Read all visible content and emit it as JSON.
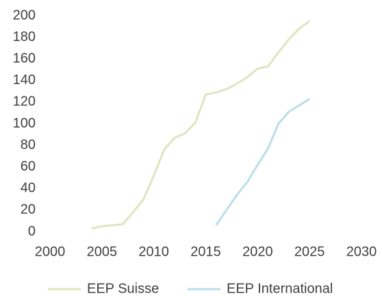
{
  "chart_data": {
    "type": "line",
    "x": [
      2004,
      2005,
      2006,
      2007,
      2008,
      2009,
      2010,
      2011,
      2012,
      2013,
      2014,
      2015,
      2016,
      2017,
      2018,
      2019,
      2020,
      2021,
      2022,
      2023,
      2024,
      2025
    ],
    "series": [
      {
        "name": "EEP Suisse",
        "color": "#dfe5bf",
        "values": [
          3,
          5,
          6,
          7,
          18,
          30,
          52,
          76,
          87,
          91,
          101,
          127,
          129,
          132,
          137,
          143,
          151,
          153,
          166,
          178,
          188,
          195
        ]
      },
      {
        "name": "EEP International",
        "color": "#b9dee9",
        "values": [
          null,
          null,
          null,
          null,
          null,
          null,
          null,
          null,
          null,
          null,
          null,
          null,
          6,
          20,
          34,
          46,
          62,
          77,
          100,
          111,
          117,
          123
        ]
      }
    ],
    "xlim": [
      2000,
      2030
    ],
    "xticks": [
      2000,
      2005,
      2010,
      2015,
      2020,
      2025,
      2030
    ],
    "ylim": [
      0,
      200
    ],
    "yticks": [
      0,
      20,
      40,
      60,
      80,
      100,
      120,
      140,
      160,
      180,
      200
    ],
    "grid": false,
    "legend": "bottom"
  }
}
